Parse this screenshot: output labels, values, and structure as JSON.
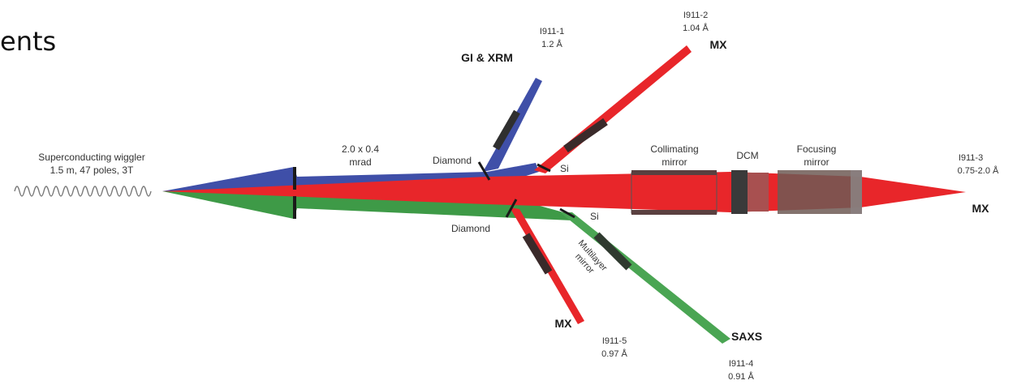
{
  "header_fragment": "ents",
  "source": {
    "line1": "Superconducting wiggler",
    "line2": "1.5 m, 47 poles, 3T"
  },
  "fan": {
    "line1": "2.0 x 0.4",
    "line2": "mrad"
  },
  "optics": {
    "diamond_upper": "Diamond",
    "diamond_lower": "Diamond",
    "si_upper": "Si",
    "si_lower": "Si",
    "collimating": {
      "line1": "Collimating",
      "line2": "mirror"
    },
    "dcm": "DCM",
    "focusing": {
      "line1": "Focusing",
      "line2": "mirror"
    },
    "multilayer": {
      "line1": "Multilayer",
      "line2": "mirror"
    }
  },
  "beamlines": [
    {
      "id": "I911-1",
      "wavelength": "1.2 Å",
      "technique": "GI & XRM",
      "color": "#3f4fa8"
    },
    {
      "id": "I911-2",
      "wavelength": "1.04 Å",
      "technique": "MX",
      "color": "#e8262a"
    },
    {
      "id": "I911-3",
      "wavelength": "0.75-2.0 Å",
      "technique": "MX",
      "color": "#e8262a"
    },
    {
      "id": "I911-4",
      "wavelength": "0.91 Å",
      "technique": "SAXS",
      "color": "#3e9a47"
    },
    {
      "id": "I911-5",
      "wavelength": "0.97 Å",
      "technique": "MX",
      "color": "#e8262a"
    }
  ]
}
